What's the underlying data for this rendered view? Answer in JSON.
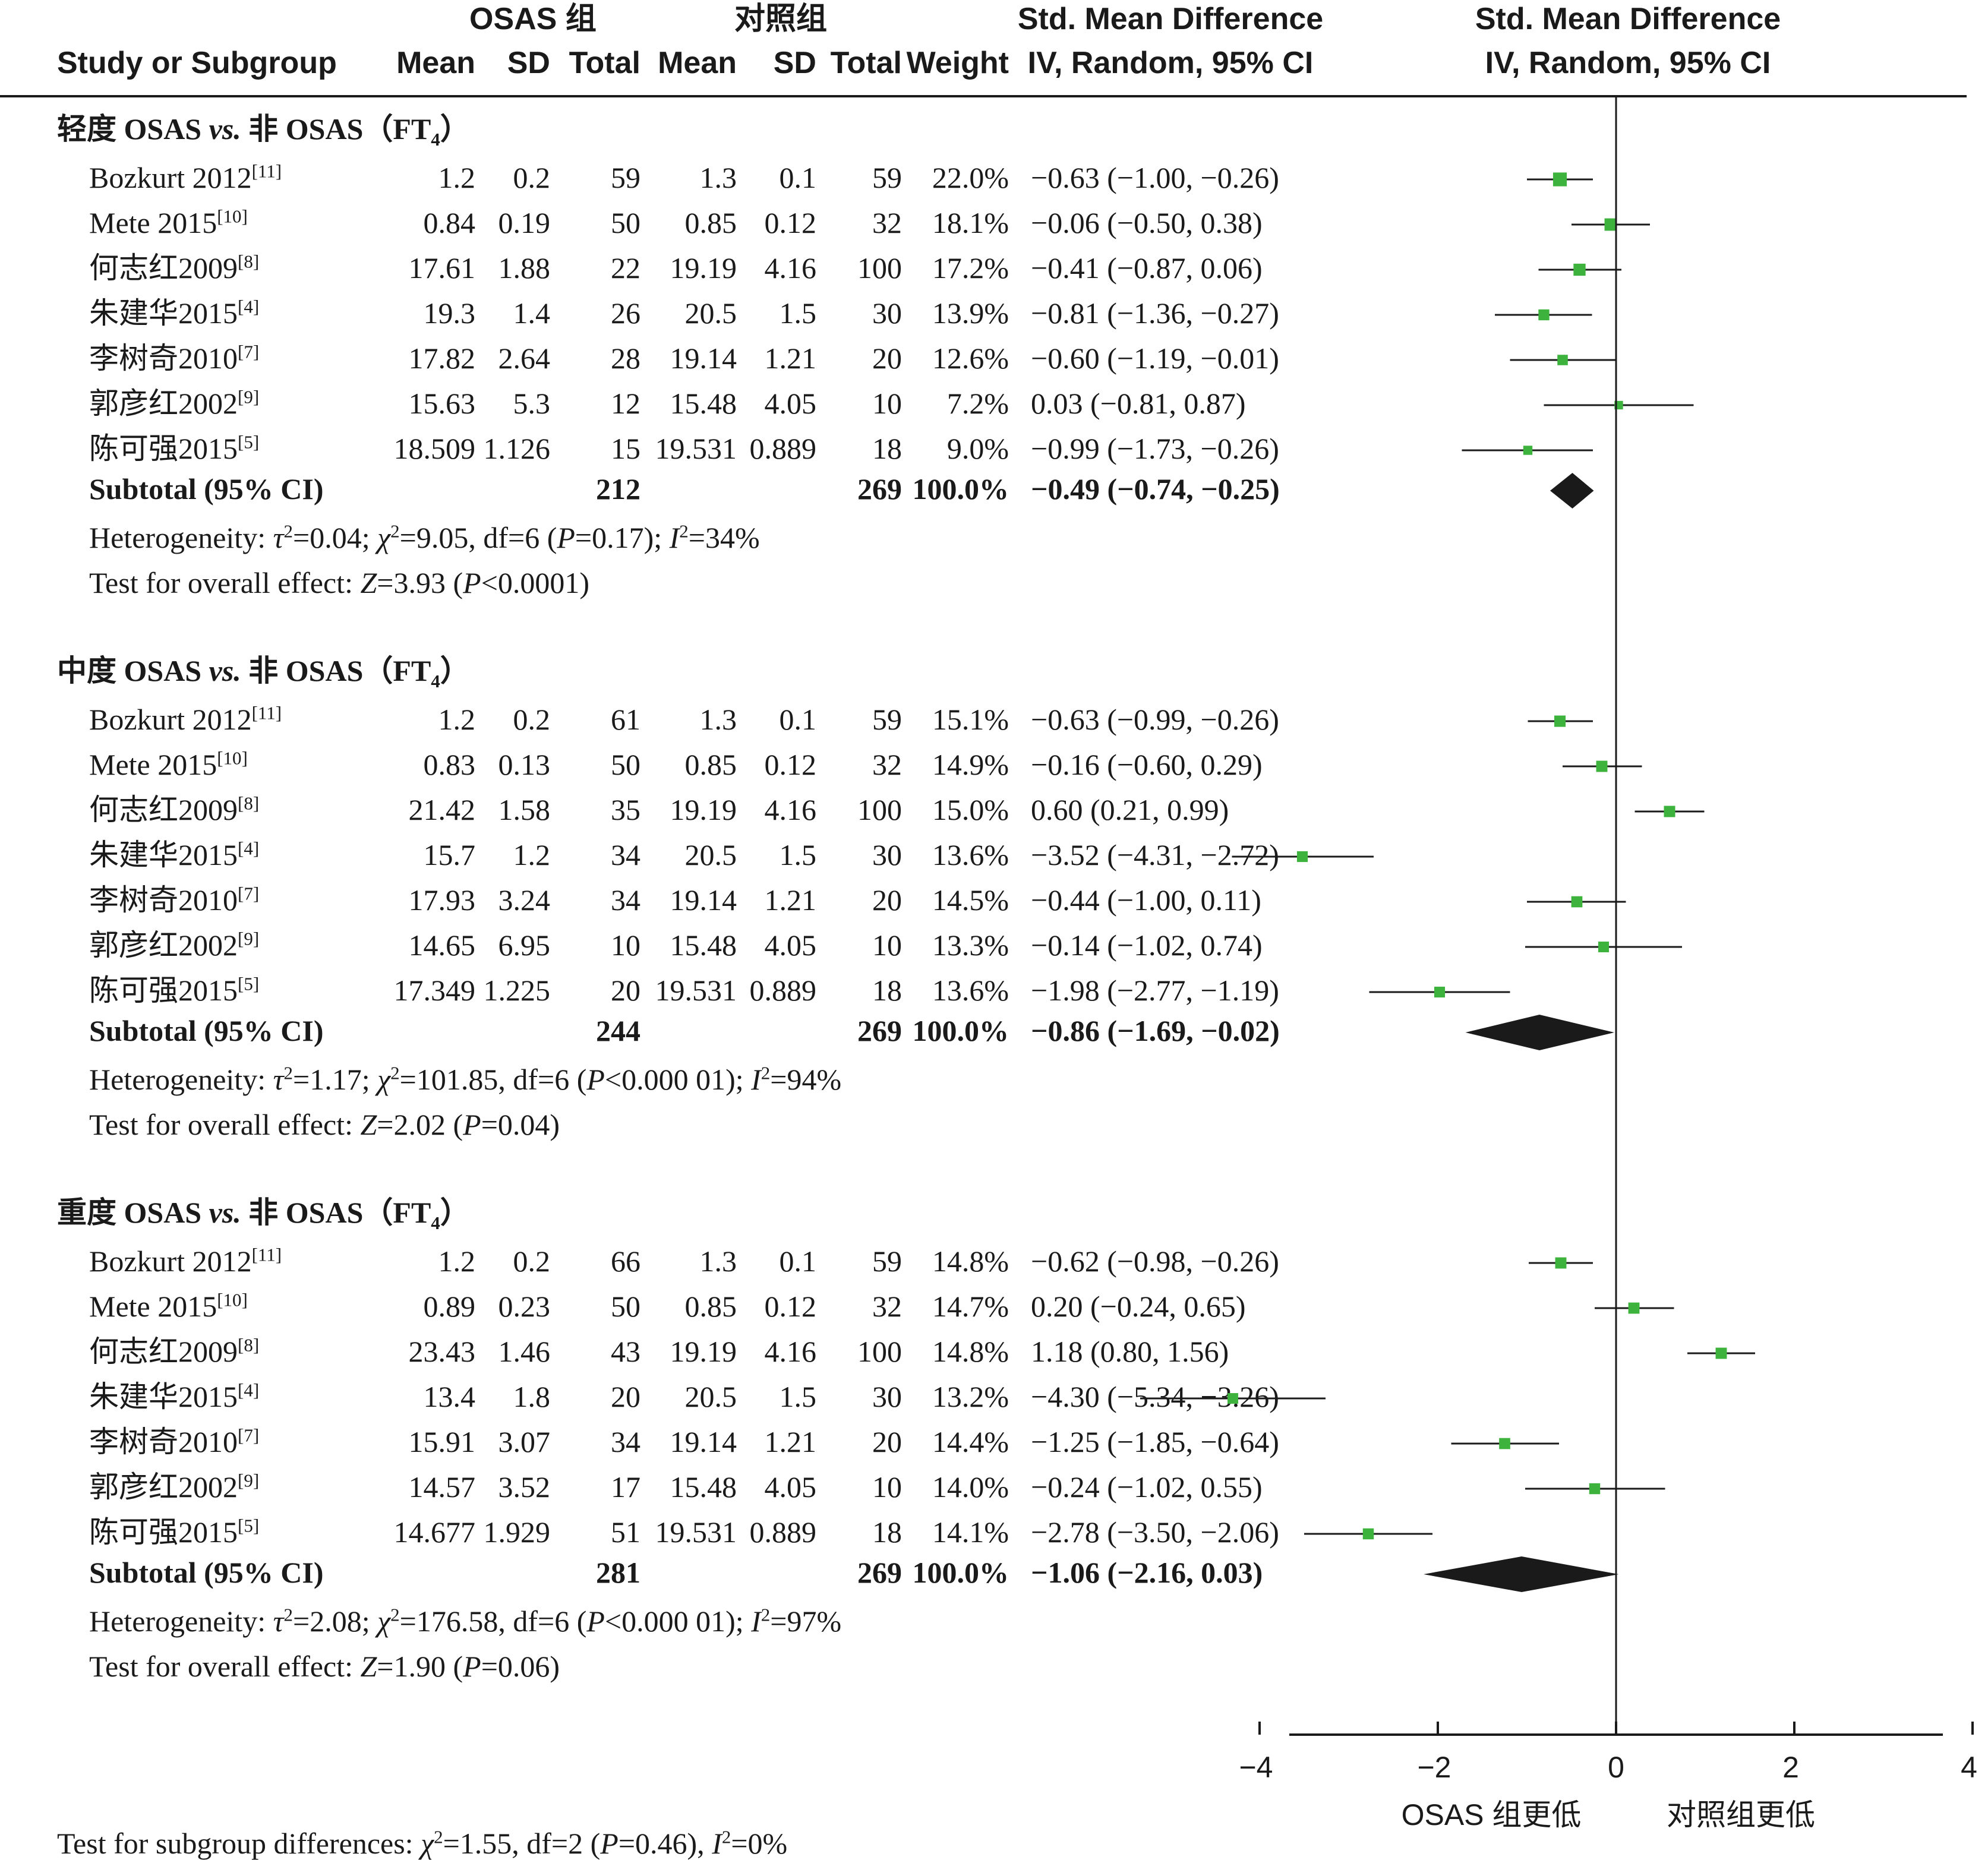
{
  "header": {
    "group_osas": "OSAS 组",
    "group_control": "对照组",
    "effect_col_title": "Std. Mean Difference",
    "effect_col_sub": "IV, Random, 95% CI",
    "plot_col_title": "Std. Mean Difference",
    "plot_col_sub": "IV, Random, 95% CI",
    "study": "Study or Subgroup",
    "mean1": "Mean",
    "sd1": "SD",
    "total1": "Total",
    "mean2": "Mean",
    "sd2": "SD",
    "total2": "Total",
    "weight": "Weight"
  },
  "chart_data": {
    "type": "forest",
    "x_axis": {
      "ticks": [
        "−4",
        "−2",
        "0",
        "2",
        "4"
      ],
      "tick_values": [
        -4,
        -2,
        0,
        2,
        4
      ],
      "range": [
        -5.3,
        7.3
      ]
    },
    "axis_label_left": "OSAS 组更低",
    "axis_label_right": "对照组更低",
    "subgroups": [
      {
        "title_pre": "轻度 OSAS ",
        "title_vs": "vs.",
        "title_mid": " 非 OSAS（FT",
        "title_sub": "4",
        "title_post": "）",
        "studies": [
          {
            "name": "Bozkurt 2012",
            "ref": "[11]",
            "mean1": "1.2",
            "sd1": "0.2",
            "total1": "59",
            "mean2": "1.3",
            "sd2": "0.1",
            "total2": "59",
            "weight": "22.0%",
            "ci_text": "−0.63 (−1.00, −0.26)",
            "est": -0.63,
            "lo": -1.0,
            "hi": -0.26,
            "w": 22.0
          },
          {
            "name": "Mete 2015",
            "ref": "[10]",
            "mean1": "0.84",
            "sd1": "0.19",
            "total1": "50",
            "mean2": "0.85",
            "sd2": "0.12",
            "total2": "32",
            "weight": "18.1%",
            "ci_text": "−0.06 (−0.50, 0.38)",
            "est": -0.06,
            "lo": -0.5,
            "hi": 0.38,
            "w": 18.1
          },
          {
            "name": "何志红2009",
            "ref": "[8]",
            "mean1": "17.61",
            "sd1": "1.88",
            "total1": "22",
            "mean2": "19.19",
            "sd2": "4.16",
            "total2": "100",
            "weight": "17.2%",
            "ci_text": "−0.41 (−0.87, 0.06)",
            "est": -0.41,
            "lo": -0.87,
            "hi": 0.06,
            "w": 17.2
          },
          {
            "name": "朱建华2015",
            "ref": "[4]",
            "mean1": "19.3",
            "sd1": "1.4",
            "total1": "26",
            "mean2": "20.5",
            "sd2": "1.5",
            "total2": "30",
            "weight": "13.9%",
            "ci_text": "−0.81 (−1.36, −0.27)",
            "est": -0.81,
            "lo": -1.36,
            "hi": -0.27,
            "w": 13.9
          },
          {
            "name": "李树奇2010",
            "ref": "[7]",
            "mean1": "17.82",
            "sd1": "2.64",
            "total1": "28",
            "mean2": "19.14",
            "sd2": "1.21",
            "total2": "20",
            "weight": "12.6%",
            "ci_text": "−0.60 (−1.19, −0.01)",
            "est": -0.6,
            "lo": -1.19,
            "hi": -0.01,
            "w": 12.6
          },
          {
            "name": "郭彦红2002",
            "ref": "[9]",
            "mean1": "15.63",
            "sd1": "5.3",
            "total1": "12",
            "mean2": "15.48",
            "sd2": "4.05",
            "total2": "10",
            "weight": "7.2%",
            "ci_text": "0.03 (−0.81, 0.87)",
            "est": 0.03,
            "lo": -0.81,
            "hi": 0.87,
            "w": 7.2
          },
          {
            "name": "陈可强2015",
            "ref": "[5]",
            "mean1": "18.509",
            "sd1": "1.126",
            "total1": "15",
            "mean2": "19.531",
            "sd2": "0.889",
            "total2": "18",
            "weight": "9.0%",
            "ci_text": "−0.99 (−1.73, −0.26)",
            "est": -0.99,
            "lo": -1.73,
            "hi": -0.26,
            "w": 9.0
          }
        ],
        "subtotal": {
          "label": "Subtotal (95% CI)",
          "total1": "212",
          "total2": "269",
          "weight": "100.0%",
          "ci_text": "−0.49 (−0.74, −0.25)",
          "est": -0.49,
          "lo": -0.74,
          "hi": -0.25
        },
        "het": {
          "tau2": "0.04",
          "chi2": "9.05",
          "df": "6",
          "p": "=0.17",
          "i2": "34%"
        },
        "overall": {
          "z": "3.93",
          "p": "<0.0001"
        }
      },
      {
        "title_pre": "中度 OSAS ",
        "title_vs": "vs.",
        "title_mid": " 非 OSAS（FT",
        "title_sub": "4",
        "title_post": "）",
        "studies": [
          {
            "name": "Bozkurt 2012",
            "ref": "[11]",
            "mean1": "1.2",
            "sd1": "0.2",
            "total1": "61",
            "mean2": "1.3",
            "sd2": "0.1",
            "total2": "59",
            "weight": "15.1%",
            "ci_text": "−0.63 (−0.99, −0.26)",
            "est": -0.63,
            "lo": -0.99,
            "hi": -0.26,
            "w": 15.1
          },
          {
            "name": "Mete 2015",
            "ref": "[10]",
            "mean1": "0.83",
            "sd1": "0.13",
            "total1": "50",
            "mean2": "0.85",
            "sd2": "0.12",
            "total2": "32",
            "weight": "14.9%",
            "ci_text": "−0.16 (−0.60, 0.29)",
            "est": -0.16,
            "lo": -0.6,
            "hi": 0.29,
            "w": 14.9
          },
          {
            "name": "何志红2009",
            "ref": "[8]",
            "mean1": "21.42",
            "sd1": "1.58",
            "total1": "35",
            "mean2": "19.19",
            "sd2": "4.16",
            "total2": "100",
            "weight": "15.0%",
            "ci_text": "0.60 (0.21, 0.99)",
            "est": 0.6,
            "lo": 0.21,
            "hi": 0.99,
            "w": 15.0
          },
          {
            "name": "朱建华2015",
            "ref": "[4]",
            "mean1": "15.7",
            "sd1": "1.2",
            "total1": "34",
            "mean2": "20.5",
            "sd2": "1.5",
            "total2": "30",
            "weight": "13.6%",
            "ci_text": "−3.52 (−4.31, −2.72)",
            "est": -3.52,
            "lo": -4.31,
            "hi": -2.72,
            "w": 13.6
          },
          {
            "name": "李树奇2010",
            "ref": "[7]",
            "mean1": "17.93",
            "sd1": "3.24",
            "total1": "34",
            "mean2": "19.14",
            "sd2": "1.21",
            "total2": "20",
            "weight": "14.5%",
            "ci_text": "−0.44 (−1.00, 0.11)",
            "est": -0.44,
            "lo": -1.0,
            "hi": 0.11,
            "w": 14.5
          },
          {
            "name": "郭彦红2002",
            "ref": "[9]",
            "mean1": "14.65",
            "sd1": "6.95",
            "total1": "10",
            "mean2": "15.48",
            "sd2": "4.05",
            "total2": "10",
            "weight": "13.3%",
            "ci_text": "−0.14 (−1.02, 0.74)",
            "est": -0.14,
            "lo": -1.02,
            "hi": 0.74,
            "w": 13.3
          },
          {
            "name": "陈可强2015",
            "ref": "[5]",
            "mean1": "17.349",
            "sd1": "1.225",
            "total1": "20",
            "mean2": "19.531",
            "sd2": "0.889",
            "total2": "18",
            "weight": "13.6%",
            "ci_text": "−1.98 (−2.77, −1.19)",
            "est": -1.98,
            "lo": -2.77,
            "hi": -1.19,
            "w": 13.6
          }
        ],
        "subtotal": {
          "label": "Subtotal (95% CI)",
          "total1": "244",
          "total2": "269",
          "weight": "100.0%",
          "ci_text": "−0.86 (−1.69, −0.02)",
          "est": -0.86,
          "lo": -1.69,
          "hi": -0.02
        },
        "het": {
          "tau2": "1.17",
          "chi2": "101.85",
          "df": "6",
          "p": "<0.000 01",
          "i2": "94%"
        },
        "overall": {
          "z": "2.02",
          "p": "=0.04"
        }
      },
      {
        "title_pre": "重度 OSAS ",
        "title_vs": "vs.",
        "title_mid": " 非 OSAS（FT",
        "title_sub": "4",
        "title_post": "）",
        "studies": [
          {
            "name": "Bozkurt 2012",
            "ref": "[11]",
            "mean1": "1.2",
            "sd1": "0.2",
            "total1": "66",
            "mean2": "1.3",
            "sd2": "0.1",
            "total2": "59",
            "weight": "14.8%",
            "ci_text": "−0.62 (−0.98, −0.26)",
            "est": -0.62,
            "lo": -0.98,
            "hi": -0.26,
            "w": 14.8
          },
          {
            "name": "Mete 2015",
            "ref": "[10]",
            "mean1": "0.89",
            "sd1": "0.23",
            "total1": "50",
            "mean2": "0.85",
            "sd2": "0.12",
            "total2": "32",
            "weight": "14.7%",
            "ci_text": "0.20 (−0.24, 0.65)",
            "est": 0.2,
            "lo": -0.24,
            "hi": 0.65,
            "w": 14.7
          },
          {
            "name": "何志红2009",
            "ref": "[8]",
            "mean1": "23.43",
            "sd1": "1.46",
            "total1": "43",
            "mean2": "19.19",
            "sd2": "4.16",
            "total2": "100",
            "weight": "14.8%",
            "ci_text": "1.18 (0.80, 1.56)",
            "est": 1.18,
            "lo": 0.8,
            "hi": 1.56,
            "w": 14.8
          },
          {
            "name": "朱建华2015",
            "ref": "[4]",
            "mean1": "13.4",
            "sd1": "1.8",
            "total1": "20",
            "mean2": "20.5",
            "sd2": "1.5",
            "total2": "30",
            "weight": "13.2%",
            "ci_text": "−4.30 (−5.34, −3.26)",
            "est": -4.3,
            "lo": -5.34,
            "hi": -3.26,
            "w": 13.2
          },
          {
            "name": "李树奇2010",
            "ref": "[7]",
            "mean1": "15.91",
            "sd1": "3.07",
            "total1": "34",
            "mean2": "19.14",
            "sd2": "1.21",
            "total2": "20",
            "weight": "14.4%",
            "ci_text": "−1.25 (−1.85, −0.64)",
            "est": -1.25,
            "lo": -1.85,
            "hi": -0.64,
            "w": 14.4
          },
          {
            "name": "郭彦红2002",
            "ref": "[9]",
            "mean1": "14.57",
            "sd1": "3.52",
            "total1": "17",
            "mean2": "15.48",
            "sd2": "4.05",
            "total2": "10",
            "weight": "14.0%",
            "ci_text": "−0.24 (−1.02, 0.55)",
            "est": -0.24,
            "lo": -1.02,
            "hi": 0.55,
            "w": 14.0
          },
          {
            "name": "陈可强2015",
            "ref": "[5]",
            "mean1": "14.677",
            "sd1": "1.929",
            "total1": "51",
            "mean2": "19.531",
            "sd2": "0.889",
            "total2": "18",
            "weight": "14.1%",
            "ci_text": "−2.78 (−3.50, −2.06)",
            "est": -2.78,
            "lo": -3.5,
            "hi": -2.06,
            "w": 14.1
          }
        ],
        "subtotal": {
          "label": "Subtotal (95% CI)",
          "total1": "281",
          "total2": "269",
          "weight": "100.0%",
          "ci_text": "−1.06 (−2.16, 0.03)",
          "est": -1.06,
          "lo": -2.16,
          "hi": 0.03
        },
        "het": {
          "tau2": "2.08",
          "chi2": "176.58",
          "df": "6",
          "p": "<0.000 01",
          "i2": "97%"
        },
        "overall": {
          "z": "1.90",
          "p": "=0.06"
        }
      }
    ],
    "subgroup_differences": {
      "chi2": "1.55",
      "df": "2",
      "p": "=0.46",
      "i2": "0%"
    },
    "colors": {
      "square": "#3db33d",
      "diamond": "#1a1a1a",
      "line": "#1a1a1a"
    }
  }
}
